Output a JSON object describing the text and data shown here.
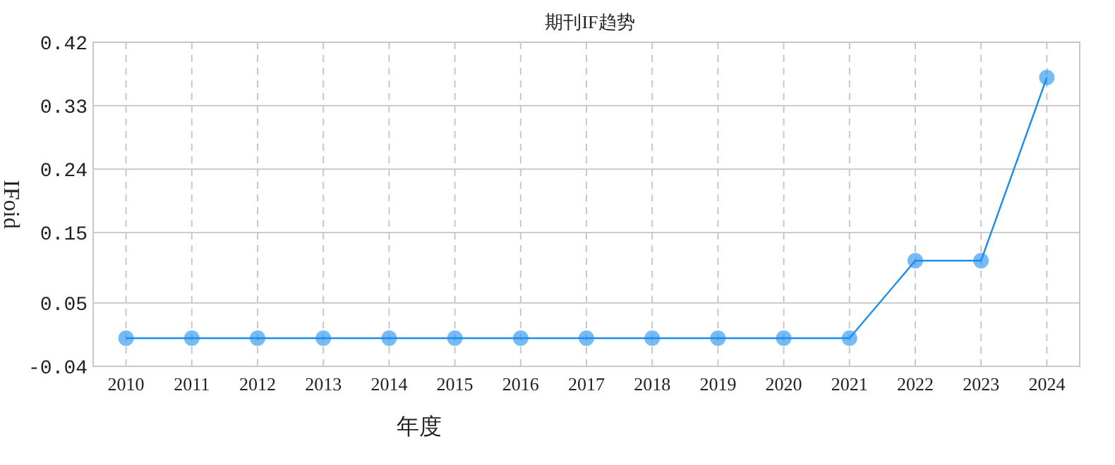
{
  "chart_data": {
    "type": "line",
    "title": "期刊IF趋势",
    "xlabel": "年度",
    "ylabel": "IFoid",
    "categories": [
      "2010",
      "2011",
      "2012",
      "2013",
      "2014",
      "2015",
      "2016",
      "2017",
      "2018",
      "2019",
      "2020",
      "2021",
      "2022",
      "2023",
      "2024"
    ],
    "series": [
      {
        "color": "#1a8cf0",
        "values": [
          0,
          0,
          0,
          0,
          0,
          0,
          0,
          0,
          0,
          0,
          0,
          0,
          0.11,
          0.11,
          0.37
        ]
      }
    ],
    "ylim": [
      -0.04,
      0.42
    ],
    "yticks": [
      -0.04,
      0.05,
      0.15,
      0.24,
      0.33,
      0.42
    ],
    "grid": true,
    "marker": "circle",
    "line_style": "solid"
  }
}
